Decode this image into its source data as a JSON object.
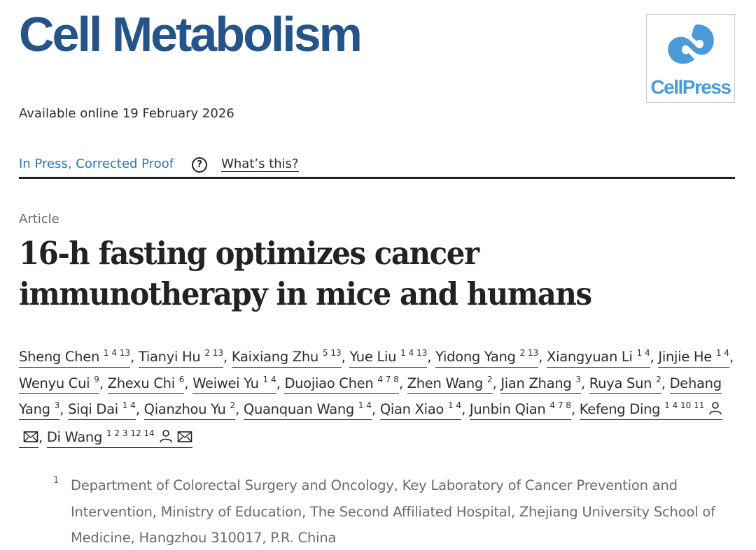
{
  "header": {
    "journal_title": "Cell Metabolism",
    "publisher_logo": "CellPress",
    "available_online": "Available online 19 February 2026",
    "status_link": "In Press, Corrected Proof",
    "help_icon": "?",
    "whats_this": "What’s this?"
  },
  "article": {
    "type": "Article",
    "title": "16-h fasting optimizes cancer immunotherapy in mice and humans"
  },
  "authors": [
    {
      "name": "Sheng Chen",
      "sup": "1 4 13"
    },
    {
      "name": "Tianyi Hu",
      "sup": "2 13"
    },
    {
      "name": "Kaixiang Zhu",
      "sup": "5 13"
    },
    {
      "name": "Yue Liu",
      "sup": "1 4 13"
    },
    {
      "name": "Yidong Yang",
      "sup": "2 13"
    },
    {
      "name": "Xiangyuan Li",
      "sup": "1 4"
    },
    {
      "name": "Jinjie He",
      "sup": "1 4"
    },
    {
      "name": "Wenyu Cui",
      "sup": "9"
    },
    {
      "name": "Zhexu Chi",
      "sup": "6"
    },
    {
      "name": "Weiwei Yu",
      "sup": "1 4"
    },
    {
      "name": "Duojiao Chen",
      "sup": "4 7 8"
    },
    {
      "name": "Zhen Wang",
      "sup": "2"
    },
    {
      "name": "Jian Zhang",
      "sup": "3"
    },
    {
      "name": "Ruya Sun",
      "sup": "2"
    },
    {
      "name": "Dehang Yang",
      "sup": "3"
    },
    {
      "name": "Siqi Dai",
      "sup": "1 4"
    },
    {
      "name": "Qianzhou Yu",
      "sup": "2"
    },
    {
      "name": "Quanquan Wang",
      "sup": "1 4"
    },
    {
      "name": "Qian Xiao",
      "sup": "1 4"
    },
    {
      "name": "Junbin Qian",
      "sup": "4 7 8"
    },
    {
      "name": "Kefeng Ding",
      "sup": "1 4 10 11",
      "icons": [
        "person-icon",
        "email-icon"
      ]
    },
    {
      "name": "Di Wang",
      "sup": "1 2 3 12 14",
      "icons": [
        "person-icon",
        "email-icon"
      ]
    }
  ],
  "affiliation": {
    "number": "1",
    "text": "Department of Colorectal Surgery and Oncology, Key Laboratory of Cancer Prevention and Intervention, Ministry of Education, The Second Affiliated Hospital, Zhejiang University School of Medicine, Hangzhou 310017, P.R. China"
  },
  "colors": {
    "journal_blue": "#245488",
    "cellpress_blue": "#4a9bd6",
    "link_blue": "#2f73ad",
    "muted_gray": "#6b6b6b"
  }
}
